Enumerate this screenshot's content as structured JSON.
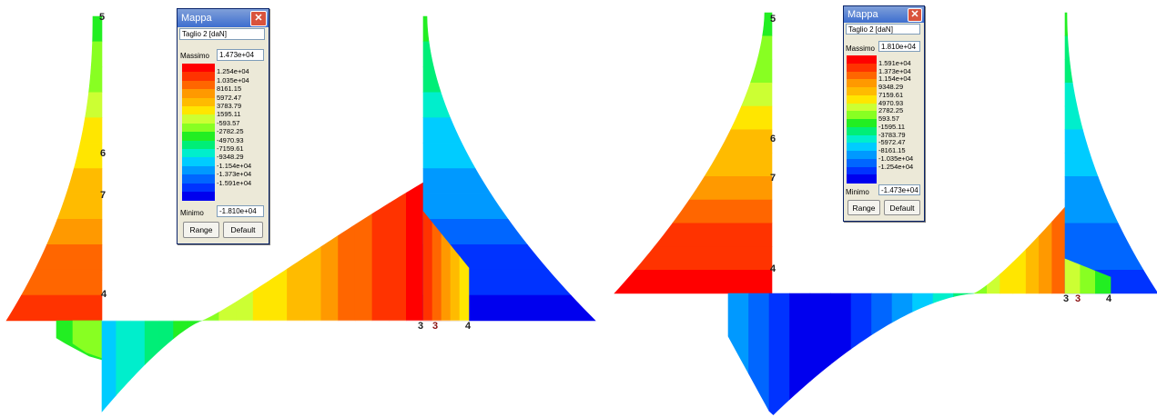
{
  "windows": [
    {
      "title": "Mappa",
      "quantity": "Taglio 2 [daN]",
      "max_label": "Massimo",
      "max_value": "1.473e+04",
      "min_label": "Minimo",
      "min_value": "-1.810e+04",
      "range_label": "Range",
      "default_label": "Default",
      "legend_values": [
        "1.254e+04",
        "1.035e+04",
        "8161.15",
        "5972.47",
        "3783.79",
        "1595.11",
        "-593.57",
        "-2782.25",
        "-4970.93",
        "-7159.61",
        "-9348.29",
        "-1.154e+04",
        "-1.373e+04",
        "-1.591e+04"
      ]
    },
    {
      "title": "Mappa",
      "quantity": "Taglio 2 [daN]",
      "max_label": "Massimo",
      "max_value": "1.810e+04",
      "min_label": "Minimo",
      "min_value": "-1.473e+04",
      "range_label": "Range",
      "default_label": "Default",
      "legend_values": [
        "1.591e+04",
        "1.373e+04",
        "1.154e+04",
        "9348.29",
        "7159.61",
        "4970.93",
        "2782.25",
        "593.57",
        "-1595.11",
        "-3783.79",
        "-5972.47",
        "-8161.15",
        "-1.035e+04",
        "-1.254e+04"
      ]
    }
  ],
  "colors": [
    "#ff0000",
    "#ff3300",
    "#ff6600",
    "#ff9900",
    "#ffbb00",
    "#ffe600",
    "#ccff33",
    "#88ff22",
    "#22ee22",
    "#00ee77",
    "#00eecc",
    "#00ccff",
    "#0099ff",
    "#0066ff",
    "#0033ff",
    "#0000ee"
  ],
  "node_labels": {
    "left": [
      "5",
      "6",
      "7",
      "4",
      "3",
      "3",
      "4"
    ],
    "right": [
      "5",
      "6",
      "7",
      "4",
      "3",
      "3",
      "4"
    ]
  }
}
